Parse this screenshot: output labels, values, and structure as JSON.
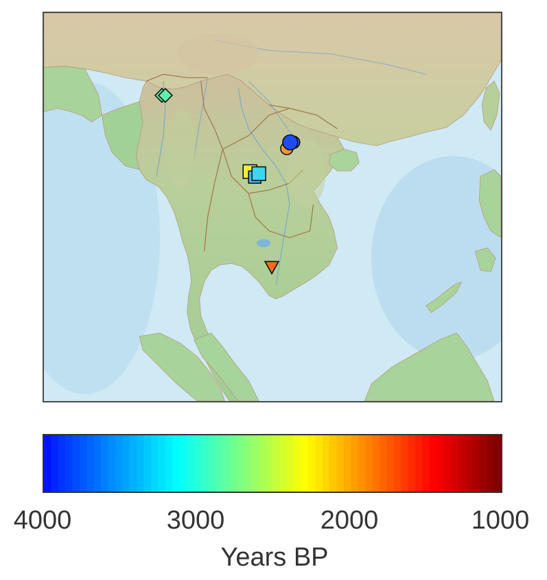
{
  "map": {
    "region": "Mainland Southeast Asia",
    "colors": {
      "ocean": "#cfe9f5",
      "deep_ocean": "#bfe0f0",
      "lowland": "#a9d39c",
      "upland": "#cfd7a6",
      "highland": "#d8c6a0",
      "border": "#a3724a",
      "river": "#7aa9c9",
      "marker_outline": "#111111"
    },
    "markers": [
      {
        "name": "marker-diamond",
        "shape": "diamond",
        "age_bp": 3100,
        "color": "#5ff0a8"
      },
      {
        "name": "marker-circle-1",
        "shape": "circle",
        "age_bp": 3900,
        "color": "#1d4cf0"
      },
      {
        "name": "marker-circle-2",
        "shape": "circle",
        "age_bp": 3700,
        "color": "#2a6df0"
      },
      {
        "name": "marker-circle-3",
        "shape": "circle",
        "age_bp": 1800,
        "color": "#f6982e"
      },
      {
        "name": "marker-square-1",
        "shape": "square",
        "age_bp": 2200,
        "color": "#f2ef3a"
      },
      {
        "name": "marker-square-2",
        "shape": "square",
        "age_bp": 3350,
        "color": "#3ad8f0"
      },
      {
        "name": "marker-square-3",
        "shape": "square",
        "age_bp": 3450,
        "color": "#33bdf2"
      },
      {
        "name": "marker-triangle",
        "shape": "triangle-down",
        "age_bp": 1700,
        "color": "#f46a1e"
      }
    ]
  },
  "colorbar": {
    "colormap": "jet",
    "ticks": [
      "4000",
      "3000",
      "2000",
      "1000"
    ],
    "label": "Years BP",
    "range": [
      4000,
      1000
    ]
  }
}
